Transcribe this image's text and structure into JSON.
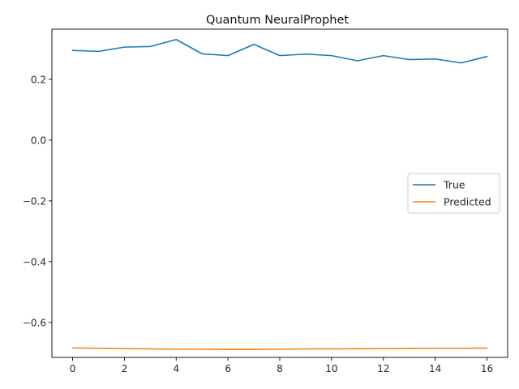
{
  "chart_data": {
    "type": "line",
    "title": "Quantum NeuralProphet",
    "xlabel": "",
    "ylabel": "",
    "x": [
      0,
      1,
      2,
      3,
      4,
      5,
      6,
      7,
      8,
      9,
      10,
      11,
      12,
      13,
      14,
      15,
      16
    ],
    "xlim": [
      -0.8,
      16.8
    ],
    "ylim": [
      -0.715,
      0.365
    ],
    "xticks": [
      0,
      2,
      4,
      6,
      8,
      10,
      12,
      14,
      16
    ],
    "yticks": [
      -0.6,
      -0.4,
      -0.2,
      0.0,
      0.2
    ],
    "ytick_labels": [
      "−0.6",
      "−0.4",
      "−0.2",
      "0.0",
      "0.2"
    ],
    "grid": false,
    "legend_position": "center-right",
    "series": [
      {
        "name": "True",
        "color": "#1f77b4",
        "values": [
          0.295,
          0.292,
          0.306,
          0.308,
          0.331,
          0.284,
          0.278,
          0.315,
          0.278,
          0.283,
          0.278,
          0.261,
          0.278,
          0.265,
          0.267,
          0.254,
          0.275
        ]
      },
      {
        "name": "Predicted",
        "color": "#ff7f0e",
        "values": [
          -0.684,
          -0.685,
          -0.686,
          -0.687,
          -0.688,
          -0.688,
          -0.6885,
          -0.6885,
          -0.688,
          -0.687,
          -0.687,
          -0.6865,
          -0.686,
          -0.6855,
          -0.685,
          -0.685,
          -0.6845
        ]
      }
    ]
  }
}
